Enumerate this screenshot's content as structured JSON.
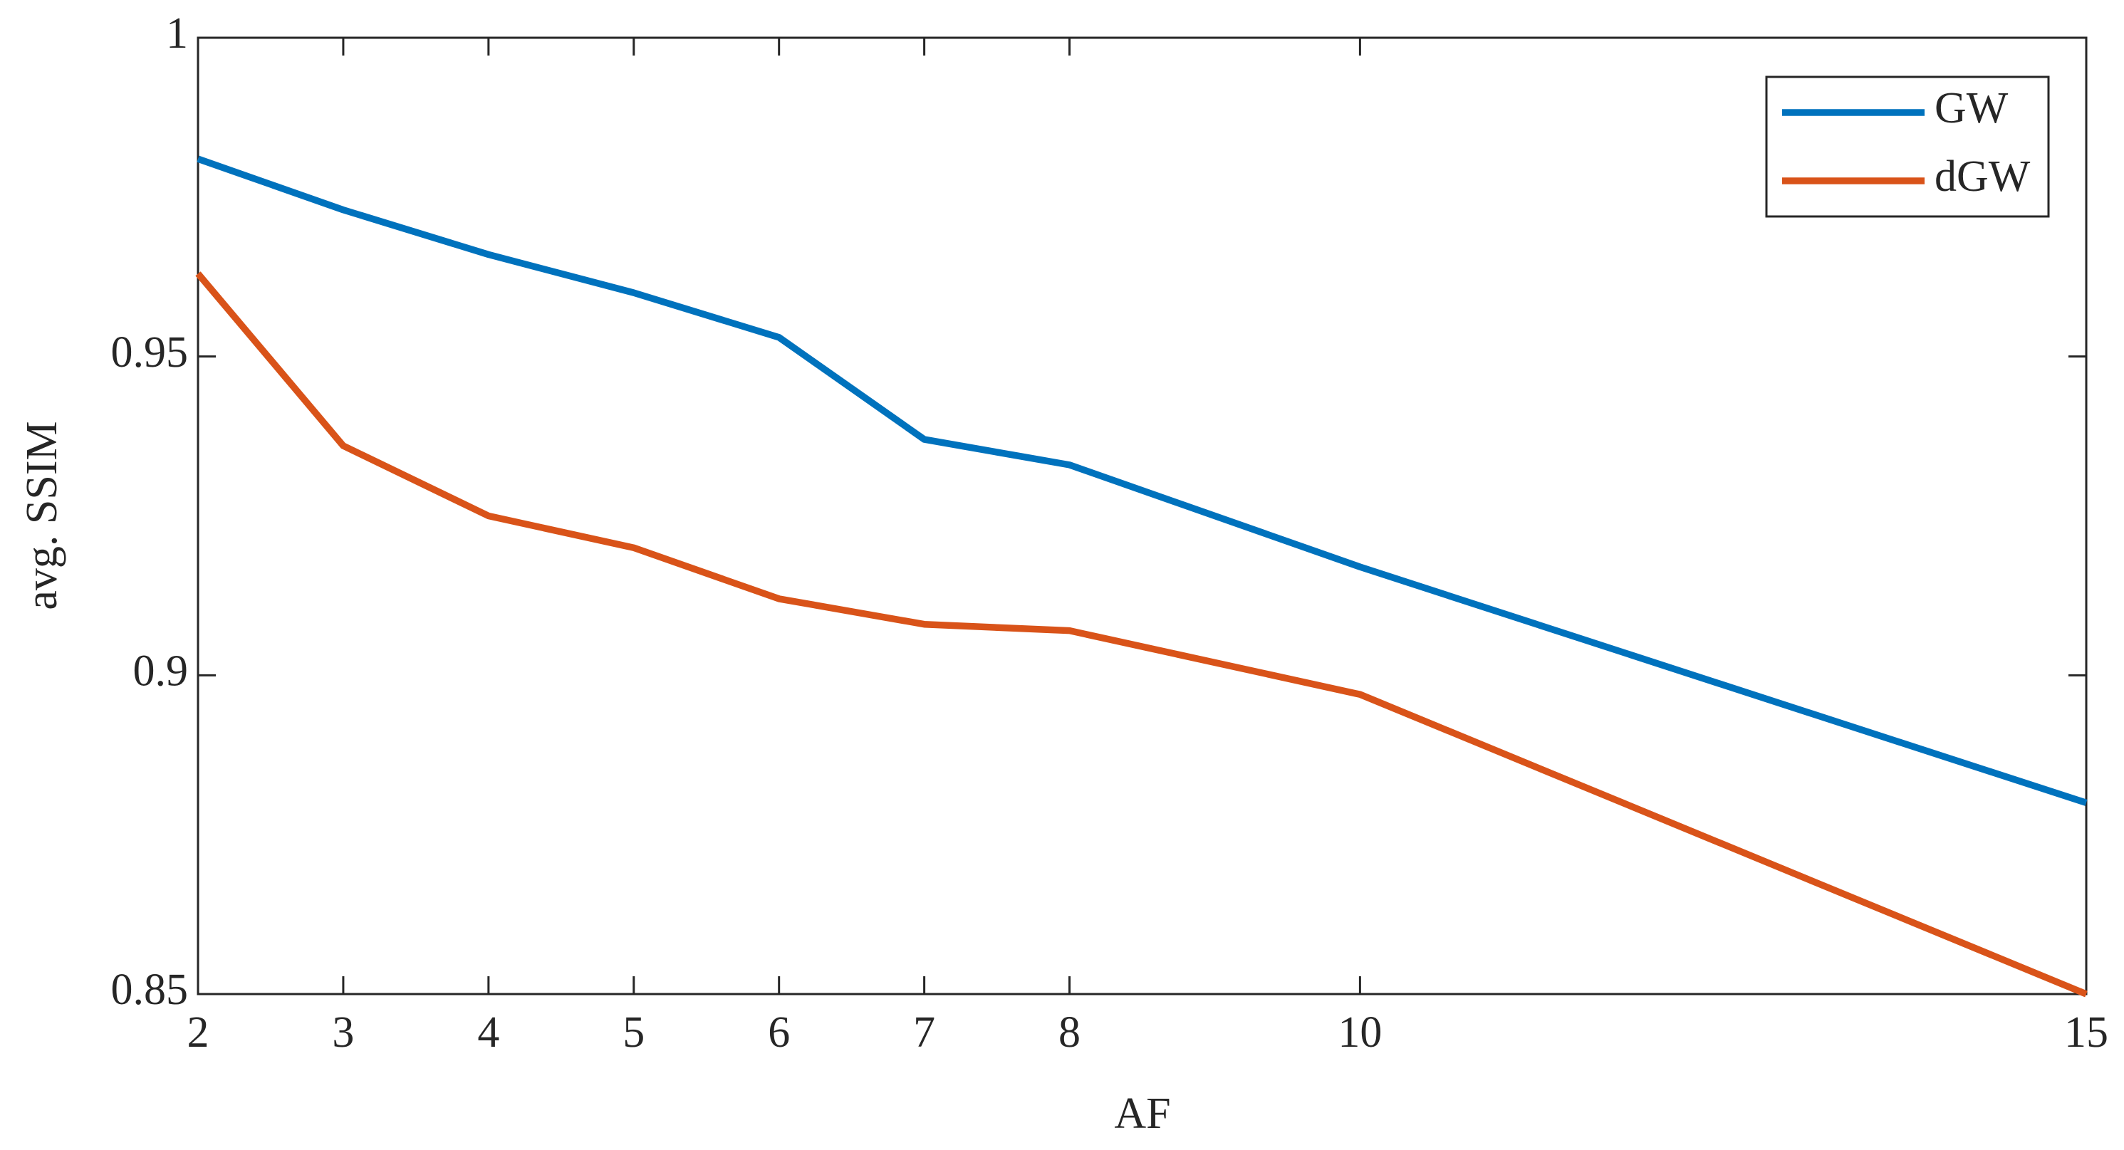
{
  "chart_data": {
    "type": "line",
    "x_label": "AF",
    "y_label": "avg. SSIM",
    "x": [
      2,
      3,
      4,
      5,
      6,
      7,
      8,
      10,
      15
    ],
    "series": [
      {
        "name": "GW",
        "color": "#0072bd",
        "values": [
          0.981,
          0.973,
          0.966,
          0.96,
          0.953,
          0.937,
          0.933,
          0.917,
          0.88
        ]
      },
      {
        "name": "dGW",
        "color": "#d95319",
        "values": [
          0.963,
          0.936,
          0.925,
          0.92,
          0.912,
          0.908,
          0.907,
          0.897,
          0.85
        ]
      }
    ],
    "xlim": [
      2,
      15
    ],
    "xticks": [
      2,
      3,
      4,
      5,
      6,
      7,
      8,
      10,
      15
    ],
    "ylim": [
      0.85,
      1
    ],
    "yticks": [
      0.85,
      0.9,
      0.95,
      1
    ],
    "grid": false,
    "legend": "upper right"
  }
}
